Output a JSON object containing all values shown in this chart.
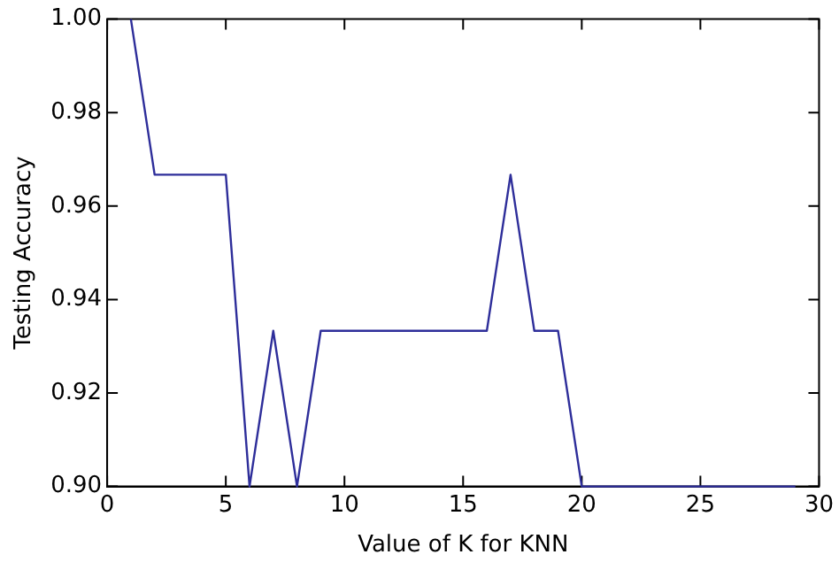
{
  "chart_data": {
    "type": "line",
    "xlabel": "Value of K for KNN",
    "ylabel": "Testing Accuracy",
    "x": [
      1,
      2,
      3,
      4,
      5,
      6,
      7,
      8,
      9,
      10,
      11,
      12,
      13,
      14,
      15,
      16,
      17,
      18,
      19,
      20,
      21,
      22,
      23,
      24,
      25,
      26,
      27,
      28,
      29
    ],
    "series": [
      {
        "color": "#2e2e9a",
        "values": [
          1.0,
          0.9667,
          0.9667,
          0.9667,
          0.9667,
          0.9,
          0.9333,
          0.9,
          0.9333,
          0.9333,
          0.9333,
          0.9333,
          0.9333,
          0.9333,
          0.9333,
          0.9333,
          0.9667,
          0.9333,
          0.9333,
          0.9,
          0.9,
          0.9,
          0.9,
          0.9,
          0.9,
          0.9,
          0.9,
          0.9,
          0.9
        ]
      }
    ],
    "xlim": [
      0,
      30
    ],
    "xticks": [
      0,
      5,
      10,
      15,
      20,
      25,
      30
    ],
    "ylim": [
      0.9,
      1.0
    ],
    "yticks": [
      {
        "value": 0.9,
        "label": "0.90"
      },
      {
        "value": 0.92,
        "label": "0.92"
      },
      {
        "value": 0.94,
        "label": "0.94"
      },
      {
        "value": 0.96,
        "label": "0.96"
      },
      {
        "value": 0.98,
        "label": "0.98"
      },
      {
        "value": 1.0,
        "label": "1.00"
      }
    ],
    "grid": false,
    "legend": false,
    "marker": "none",
    "line_style": "solid"
  }
}
